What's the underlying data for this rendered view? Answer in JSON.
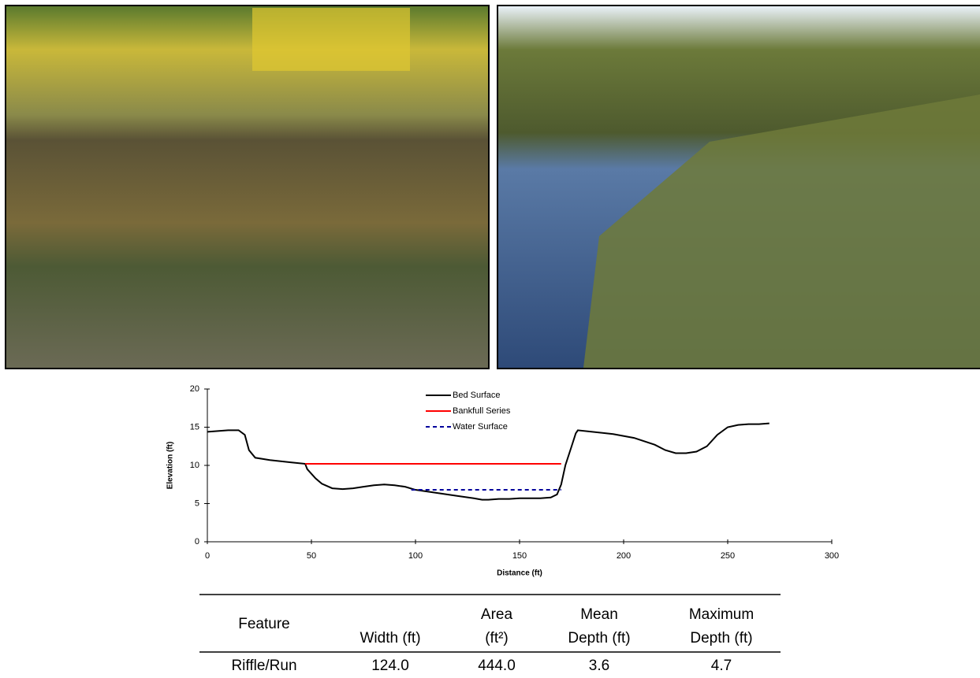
{
  "chart_data": {
    "type": "line",
    "x_label": "Distance (ft)",
    "y_label": "Elevation (ft)",
    "xlim": [
      0,
      300
    ],
    "xticks": [
      0,
      50,
      100,
      150,
      200,
      250,
      300
    ],
    "ylim": [
      0,
      20
    ],
    "yticks": [
      0,
      5,
      10,
      15,
      20
    ],
    "grid": false,
    "legend": "upper center",
    "series": [
      {
        "name": "Bed Surface",
        "color": "#000000",
        "line_style": "solid",
        "x": [
          0,
          10,
          15,
          18,
          20,
          23,
          30,
          40,
          47,
          48,
          52,
          55,
          60,
          65,
          70,
          75,
          80,
          85,
          90,
          95,
          100,
          110,
          120,
          128,
          132,
          135,
          140,
          145,
          150,
          160,
          165,
          168,
          170,
          172,
          175,
          177,
          178,
          185,
          195,
          205,
          215,
          220,
          225,
          230,
          235,
          240,
          245,
          250,
          255,
          260,
          265,
          270
        ],
        "values": [
          14.4,
          14.6,
          14.6,
          14,
          12,
          11,
          10.7,
          10.4,
          10.2,
          9.5,
          8.3,
          7.6,
          7,
          6.9,
          7,
          7.2,
          7.4,
          7.5,
          7.4,
          7.2,
          6.8,
          6.4,
          6,
          5.7,
          5.5,
          5.5,
          5.6,
          5.6,
          5.7,
          5.7,
          5.8,
          6.2,
          7.5,
          10,
          12.5,
          14.2,
          14.6,
          14.4,
          14.1,
          13.6,
          12.7,
          12,
          11.6,
          11.6,
          11.8,
          12.5,
          14,
          15,
          15.3,
          15.4,
          15.4,
          15.5
        ]
      },
      {
        "name": "Bankfull Series",
        "color": "#ff0000",
        "line_style": "solid",
        "x": [
          47,
          170
        ],
        "values": [
          10.2,
          10.2
        ]
      },
      {
        "name": "Water Surface",
        "color": "#00009c",
        "line_style": "dashed",
        "x": [
          98,
          170
        ],
        "values": [
          6.8,
          6.8
        ]
      }
    ]
  },
  "table": {
    "header": [
      [
        "Feature"
      ],
      [
        "Width (ft)"
      ],
      [
        "Area",
        "(ft²)"
      ],
      [
        "Mean",
        "Depth (ft)"
      ],
      [
        "Maximum",
        "Depth (ft)"
      ]
    ],
    "rows": [
      [
        "Riffle/Run",
        "124.0",
        "444.0",
        "3.6",
        "4.7"
      ]
    ]
  }
}
